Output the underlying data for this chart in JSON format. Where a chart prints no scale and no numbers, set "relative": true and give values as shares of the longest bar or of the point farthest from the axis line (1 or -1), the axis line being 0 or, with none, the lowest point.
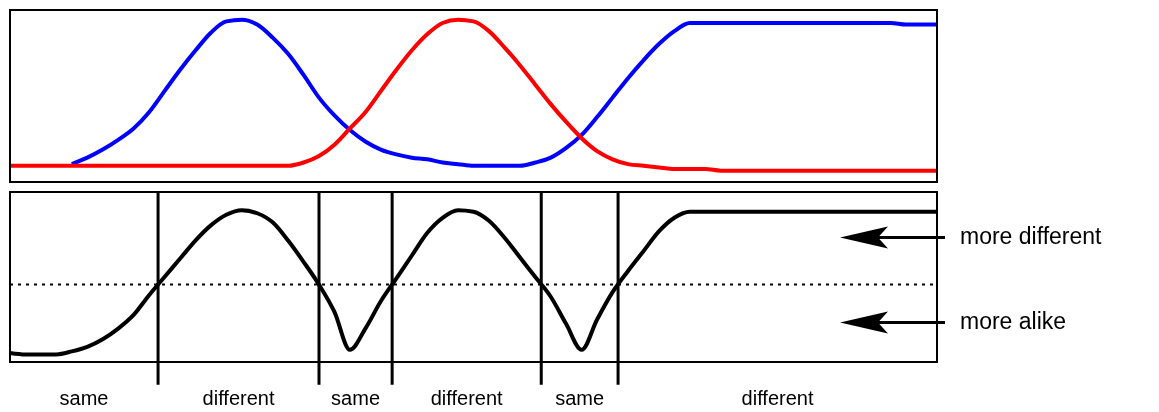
{
  "chart_data": [
    {
      "type": "line",
      "relative": true,
      "tick_labels": false,
      "marker": "none",
      "categories": [
        null,
        null,
        null,
        null,
        null,
        null,
        null,
        null,
        null,
        null,
        null,
        null,
        null,
        null,
        null,
        null,
        null,
        null,
        null,
        null,
        null,
        null,
        null,
        null,
        null,
        null,
        null,
        null,
        null,
        null,
        null,
        null,
        null,
        null,
        null,
        null,
        null,
        null,
        null,
        null,
        null,
        null,
        null,
        null,
        null,
        null,
        null,
        null,
        null,
        null,
        null,
        null,
        null,
        null,
        null,
        null,
        null,
        null,
        null,
        null,
        null
      ],
      "series": [
        {
          "color": "#0000ff",
          "values": [
            null,
            null,
            null,
            null,
            0.11,
            0.15,
            0.2,
            0.26,
            0.33,
            0.43,
            0.56,
            0.69,
            0.81,
            0.92,
            0.99,
            1,
            0.97,
            0.89,
            0.79,
            0.66,
            0.52,
            0.41,
            0.32,
            0.25,
            0.2,
            0.17,
            0.15,
            0.14,
            0.12,
            0.11,
            0.1,
            0.1,
            0.1,
            0.1,
            0.12,
            0.15,
            0.21,
            0.29,
            0.4,
            0.52,
            0.64,
            0.75,
            0.85,
            0.93,
            0.98,
            0.98,
            0.98,
            0.98,
            0.98,
            0.98,
            0.98,
            0.98,
            0.98,
            0.98,
            0.98,
            0.98,
            0.98,
            0.98,
            0.97,
            0.97,
            0.97
          ]
        },
        {
          "color": "#ff0000",
          "values": [
            0.1,
            0.1,
            0.1,
            0.1,
            0.1,
            0.1,
            0.1,
            0.1,
            0.1,
            0.1,
            0.1,
            0.1,
            0.1,
            0.1,
            0.1,
            0.1,
            0.1,
            0.1,
            0.1,
            0.12,
            0.16,
            0.23,
            0.33,
            0.43,
            0.56,
            0.69,
            0.81,
            0.91,
            0.98,
            1,
            0.99,
            0.93,
            0.83,
            0.72,
            0.6,
            0.48,
            0.37,
            0.27,
            0.19,
            0.14,
            0.11,
            0.1,
            0.09,
            0.08,
            0.08,
            0.08,
            0.07,
            0.07,
            0.07,
            0.07,
            0.07,
            0.07,
            0.07,
            0.07,
            0.07,
            0.07,
            0.07,
            0.07,
            0.07,
            0.07,
            0.07
          ]
        }
      ]
    },
    {
      "type": "line",
      "relative": true,
      "tick_labels": false,
      "marker": "none",
      "categories": [
        null,
        null,
        null,
        null,
        null,
        null,
        null,
        null,
        null,
        null,
        null,
        null,
        null,
        null,
        null,
        null,
        null,
        null,
        null,
        null,
        null,
        null,
        null,
        null,
        null,
        null,
        null,
        null,
        null,
        null,
        null,
        null,
        null,
        null,
        null,
        null,
        null,
        null,
        null,
        null,
        null,
        null,
        null,
        null,
        null,
        null,
        null,
        null,
        null,
        null,
        null,
        null,
        null,
        null,
        null,
        null,
        null,
        null,
        null,
        null,
        null
      ],
      "series": [
        {
          "color": "#000000",
          "values": [
            0.06,
            0.05,
            0.05,
            0.05,
            0.07,
            0.1,
            0.15,
            0.22,
            0.31,
            0.44,
            0.56,
            0.68,
            0.8,
            0.9,
            0.97,
            1,
            0.98,
            0.92,
            0.8,
            0.66,
            0.51,
            0.33,
            0.08,
            0.22,
            0.4,
            0.55,
            0.7,
            0.85,
            0.95,
            1,
            0.99,
            0.93,
            0.82,
            0.69,
            0.56,
            0.43,
            0.25,
            0.08,
            0.28,
            0.46,
            0.6,
            0.73,
            0.86,
            0.95,
            0.99,
            0.99,
            0.99,
            0.99,
            0.99,
            0.99,
            0.99,
            0.99,
            0.99,
            0.99,
            0.99,
            0.99,
            0.99,
            0.99,
            0.99,
            0.99,
            0.99
          ]
        }
      ],
      "ref_lines": [
        {
          "axis": "y",
          "value": 0.51,
          "line_style": "dotted",
          "color": "#000000"
        }
      ],
      "annotations": [
        "same",
        "different",
        "same",
        "different",
        "same",
        "different",
        "more different",
        "more alike"
      ]
    }
  ]
}
